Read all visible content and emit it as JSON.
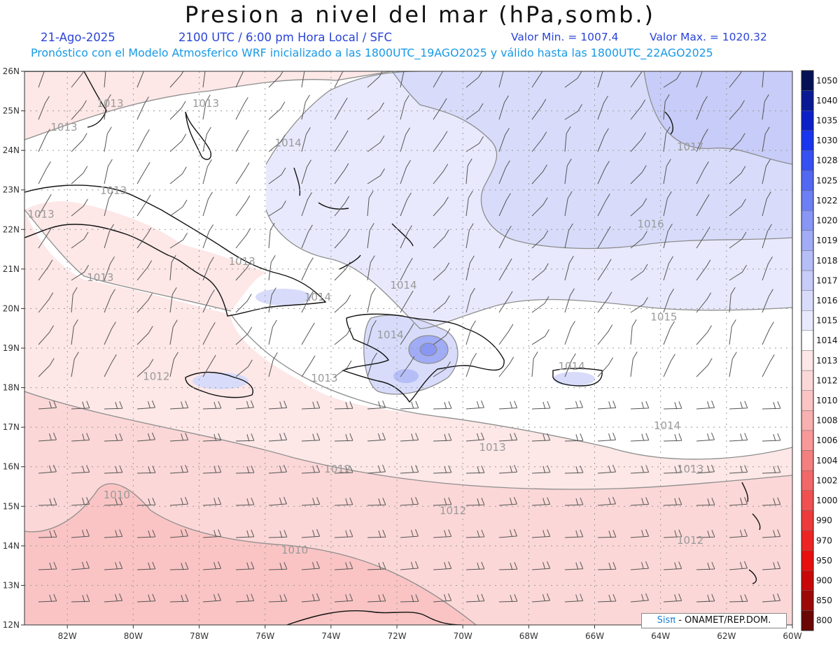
{
  "header": {
    "title": "Presion a nivel del mar (hPa,somb.)",
    "date": "21-Ago-2025",
    "time_info": "2100 UTC / 6:00 pm Hora Local / SFC",
    "value_min": "Valor Min. = 1007.4",
    "value_max": "Valor Max. = 1020.32",
    "model_info": "Pronóstico con el Modelo Atmosferico WRF inicializado a las 1800UTC_19AGO2025 y válido hasta las  1800UTC_22AGO2025"
  },
  "colors": {
    "title": "#111111",
    "date_line": "#2a44d8",
    "model_line": "#1799e6",
    "coast": "#111111",
    "contour": "#8e8e8e",
    "barb": "#555555",
    "grid": "#9a9a9a"
  },
  "axes": {
    "lon_ticks": [
      "82W",
      "80W",
      "78W",
      "76W",
      "74W",
      "72W",
      "70W",
      "68W",
      "66W",
      "64W",
      "62W",
      "60W"
    ],
    "lat_ticks": [
      "26N",
      "25N",
      "24N",
      "23N",
      "22N",
      "21N",
      "20N",
      "19N",
      "18N",
      "17N",
      "16N",
      "15N",
      "14N",
      "13N",
      "12N"
    ]
  },
  "map_extent": {
    "lon_min": -83.3,
    "lon_max": -60,
    "lat_min": 12,
    "lat_max": 26
  },
  "colorbar": {
    "levels": [
      {
        "label": "1050",
        "color": "#061255"
      },
      {
        "label": "1040",
        "color": "#0a1a94"
      },
      {
        "label": "1035",
        "color": "#0c20c8"
      },
      {
        "label": "1030",
        "color": "#1a35ee"
      },
      {
        "label": "1028",
        "color": "#3650f2"
      },
      {
        "label": "1025",
        "color": "#5268f3"
      },
      {
        "label": "1022",
        "color": "#6c7ff4"
      },
      {
        "label": "1020",
        "color": "#8896f6"
      },
      {
        "label": "1019",
        "color": "#a1acf6"
      },
      {
        "label": "1018",
        "color": "#b6bef8"
      },
      {
        "label": "1017",
        "color": "#c7ccf8"
      },
      {
        "label": "1016",
        "color": "#d8dcfa"
      },
      {
        "label": "1015",
        "color": "#e8e9fc"
      },
      {
        "label": "1014",
        "color": "#ffffff"
      },
      {
        "label": "1013",
        "color": "#fde7e7"
      },
      {
        "label": "1012",
        "color": "#fcd7d7"
      },
      {
        "label": "1010",
        "color": "#fac4c4"
      },
      {
        "label": "1008",
        "color": "#f8b0b0"
      },
      {
        "label": "1006",
        "color": "#f89898"
      },
      {
        "label": "1004",
        "color": "#f47f7f"
      },
      {
        "label": "1002",
        "color": "#f26868"
      },
      {
        "label": "1000",
        "color": "#f05050"
      },
      {
        "label": "990",
        "color": "#ee3a3a"
      },
      {
        "label": "970",
        "color": "#ee2424"
      },
      {
        "label": "950",
        "color": "#e80e0e"
      },
      {
        "label": "900",
        "color": "#c80808"
      },
      {
        "label": "850",
        "color": "#9c0808"
      },
      {
        "label": "800",
        "color": "#6a0606"
      }
    ]
  },
  "contour_labels": [
    {
      "text": "1013",
      "lon": -80.7,
      "lat": 25.1
    },
    {
      "text": "1013",
      "lon": -77.8,
      "lat": 25.1
    },
    {
      "text": "1013",
      "lon": -82.1,
      "lat": 24.5
    },
    {
      "text": "1014",
      "lon": -75.3,
      "lat": 24.1
    },
    {
      "text": "1017",
      "lon": -63.1,
      "lat": 24.0
    },
    {
      "text": "1013",
      "lon": -80.6,
      "lat": 22.9
    },
    {
      "text": "1013",
      "lon": -82.8,
      "lat": 22.3
    },
    {
      "text": "1016",
      "lon": -64.3,
      "lat": 22.05
    },
    {
      "text": "1013",
      "lon": -76.7,
      "lat": 21.1
    },
    {
      "text": "1013",
      "lon": -81.0,
      "lat": 20.7
    },
    {
      "text": "1014",
      "lon": -71.8,
      "lat": 20.5
    },
    {
      "text": "1014",
      "lon": -74.4,
      "lat": 20.2
    },
    {
      "text": "1015",
      "lon": -63.9,
      "lat": 19.7
    },
    {
      "text": "1014",
      "lon": -72.2,
      "lat": 19.25
    },
    {
      "text": "1014",
      "lon": -66.7,
      "lat": 18.45
    },
    {
      "text": "1012",
      "lon": -79.3,
      "lat": 18.2
    },
    {
      "text": "1013",
      "lon": -74.2,
      "lat": 18.15
    },
    {
      "text": "1014",
      "lon": -63.8,
      "lat": 16.95
    },
    {
      "text": "1013",
      "lon": -69.1,
      "lat": 16.4
    },
    {
      "text": "1013",
      "lon": -63.1,
      "lat": 15.85
    },
    {
      "text": "1012",
      "lon": -73.8,
      "lat": 15.85
    },
    {
      "text": "1010",
      "lon": -80.5,
      "lat": 15.2
    },
    {
      "text": "1012",
      "lon": -70.3,
      "lat": 14.8
    },
    {
      "text": "1012",
      "lon": -63.1,
      "lat": 14.05
    },
    {
      "text": "1010",
      "lon": -75.1,
      "lat": 13.8
    }
  ],
  "credit": {
    "brand": "Sisπ",
    "text": " - ONAMET/REP.DOM."
  }
}
